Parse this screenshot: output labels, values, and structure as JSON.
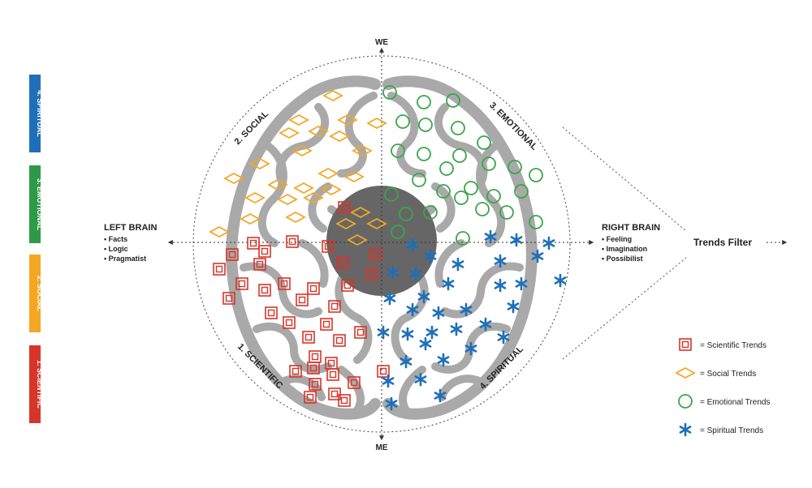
{
  "axis": {
    "top": "WE",
    "bottom": "ME"
  },
  "quadrants": {
    "social": "2. SOCIAL",
    "emotional": "3. EMOTIONAL",
    "scientific": "1. SCIENTIFIC",
    "spiritual": "4. SPIRITUAL"
  },
  "left_brain": {
    "title": "LEFT BRAIN",
    "items": [
      "• Facts",
      "• Logic",
      "• Pragmatist"
    ]
  },
  "right_brain": {
    "title": "RIGHT BRAIN",
    "items": [
      "• Feeling",
      "• Imagination",
      "• Possibilist"
    ]
  },
  "trends_filter": "Trends Filter",
  "sidebar_bars": [
    {
      "label": "4. SPIRITUAL",
      "color": "#1f6fb8"
    },
    {
      "label": "3. EMOTIONAL",
      "color": "#2e9a47"
    },
    {
      "label": "2. SOCIAL",
      "color": "#f5a623"
    },
    {
      "label": "1. SCIENTIFIC",
      "color": "#d8352a"
    }
  ],
  "legend": [
    {
      "label": "= Scientific Trends",
      "icon": "square-icon",
      "color": "#d8352a"
    },
    {
      "label": "= Social Trends",
      "icon": "diamond-icon",
      "color": "#f5a623"
    },
    {
      "label": "= Emotional Trends",
      "icon": "circle-icon",
      "color": "#3aa64a"
    },
    {
      "label": "= Spiritual Trends",
      "icon": "asterisk-icon",
      "color": "#1f6fb8"
    }
  ]
}
